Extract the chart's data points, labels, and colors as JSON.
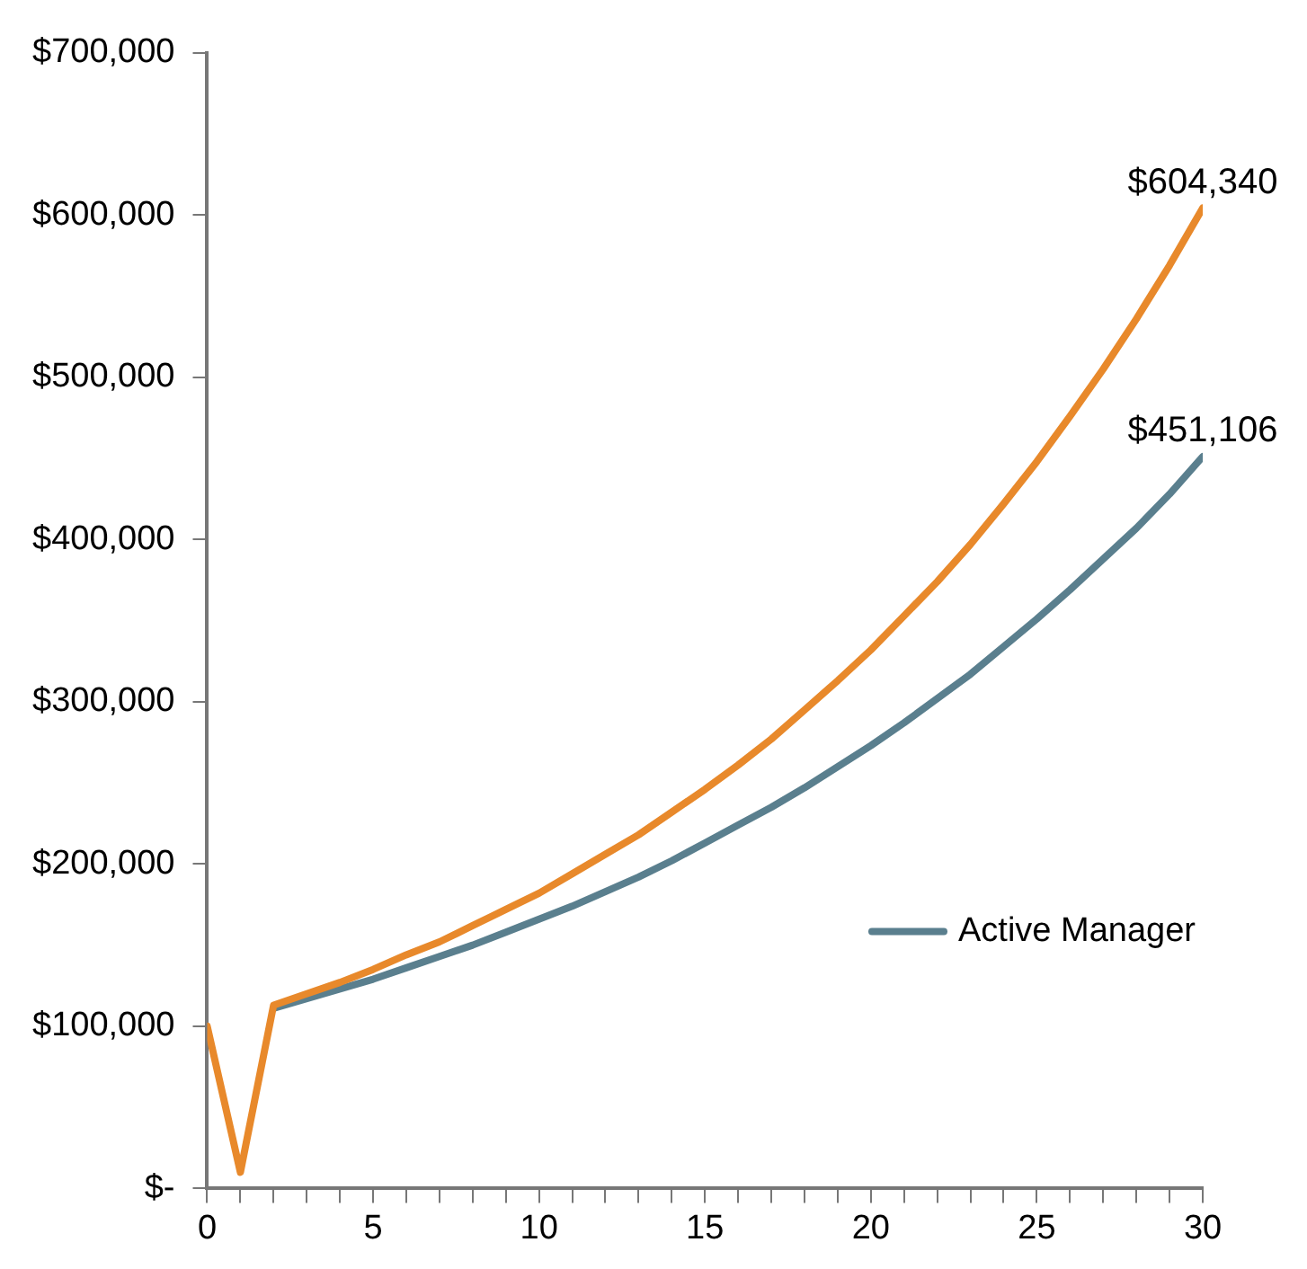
{
  "chart_data": {
    "type": "line",
    "x": [
      0,
      1,
      2,
      3,
      4,
      5,
      6,
      7,
      8,
      9,
      10,
      11,
      12,
      13,
      14,
      15,
      16,
      17,
      18,
      19,
      20,
      21,
      22,
      23,
      24,
      25,
      26,
      27,
      28,
      29,
      30
    ],
    "series": [
      {
        "name": "Active Manager",
        "color": "#5a7f8e",
        "values": [
          null,
          null,
          111000,
          117000,
          123000,
          129000,
          136000,
          143000,
          150000,
          158000,
          166000,
          174000,
          183000,
          192000,
          202000,
          213000,
          224000,
          235000,
          247000,
          260000,
          273000,
          287000,
          302000,
          317000,
          334000,
          351000,
          369000,
          388000,
          407000,
          428000,
          451106
        ]
      },
      {
        "color": "#e8892b",
        "values": [
          100000,
          10000,
          113000,
          120000,
          127000,
          135000,
          144000,
          152000,
          162000,
          172000,
          182000,
          194000,
          206000,
          218000,
          232000,
          246000,
          261000,
          277000,
          295000,
          313000,
          332000,
          353000,
          374000,
          397000,
          422000,
          448000,
          476000,
          505000,
          536000,
          569000,
          604340
        ]
      }
    ],
    "xlim": [
      0,
      30
    ],
    "xticks": [
      0,
      {
        "value": 1,
        "label": null
      },
      {
        "value": 2,
        "label": null
      },
      {
        "value": 3,
        "label": null
      },
      {
        "value": 4,
        "label": null
      },
      5,
      {
        "value": 6,
        "label": null
      },
      {
        "value": 7,
        "label": null
      },
      {
        "value": 8,
        "label": null
      },
      {
        "value": 9,
        "label": null
      },
      10,
      {
        "value": 11,
        "label": null
      },
      {
        "value": 12,
        "label": null
      },
      {
        "value": 13,
        "label": null
      },
      {
        "value": 14,
        "label": null
      },
      15,
      {
        "value": 16,
        "label": null
      },
      {
        "value": 17,
        "label": null
      },
      {
        "value": 18,
        "label": null
      },
      {
        "value": 19,
        "label": null
      },
      20,
      {
        "value": 21,
        "label": null
      },
      {
        "value": 22,
        "label": null
      },
      {
        "value": 23,
        "label": null
      },
      {
        "value": 24,
        "label": null
      },
      25,
      {
        "value": 26,
        "label": null
      },
      {
        "value": 27,
        "label": null
      },
      {
        "value": 28,
        "label": null
      },
      {
        "value": 29,
        "label": null
      },
      30
    ],
    "ylim": [
      0,
      700000
    ],
    "yticks": [
      {
        "value": 0,
        "label": "$-"
      },
      {
        "value": 100000,
        "label": "$100,000"
      },
      {
        "value": 200000,
        "label": "$200,000"
      },
      {
        "value": 300000,
        "label": "$300,000"
      },
      {
        "value": 400000,
        "label": "$400,000"
      },
      {
        "value": 500000,
        "label": "$500,000"
      },
      {
        "value": 600000,
        "label": "$600,000"
      },
      {
        "value": 700000,
        "label": "$700,000"
      }
    ],
    "annotations": [
      {
        "text": "$604,340",
        "x": 30,
        "y": 604340
      },
      {
        "text": "$451,106",
        "x": 30,
        "y": 451106
      }
    ],
    "grid": false,
    "legend": "bottom right",
    "marker": "none",
    "line_style": "solid"
  }
}
